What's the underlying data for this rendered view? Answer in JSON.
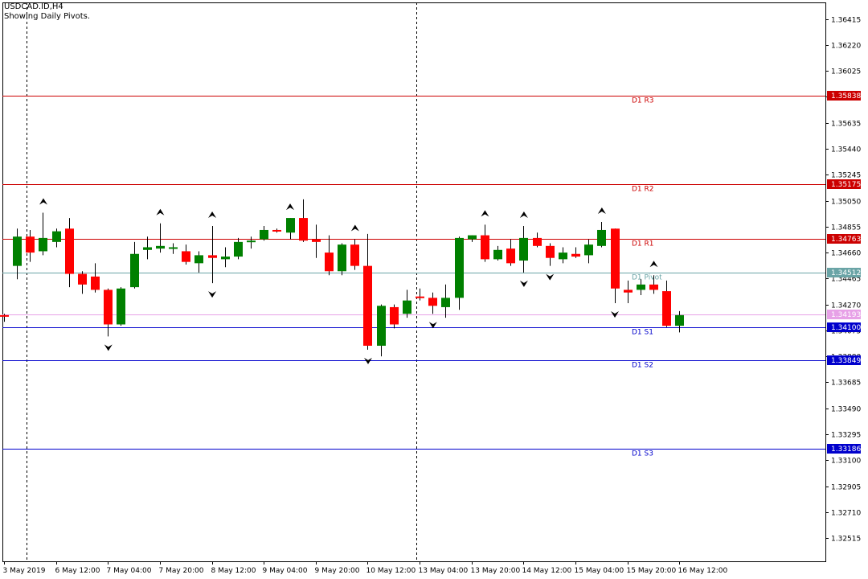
{
  "header": {
    "symbol": "USDCAD.ID,H4",
    "subtitle": "Showing Daily Pivots."
  },
  "colors": {
    "bull": "#008000",
    "bear": "#ff0000",
    "wick": "#000000",
    "resistance": "#cc0000",
    "pivot": "#6aa4a6",
    "support": "#0000cc",
    "bid": "#e7a1e7",
    "grid_dash": "#000000",
    "fractal": "#000000"
  },
  "chart_data": {
    "type": "candlestick",
    "ylim": [
      1.3234,
      1.3654
    ],
    "y_ticks": [
      "1.36415",
      "1.36220",
      "1.36025",
      "1.35835",
      "1.35635",
      "1.35440",
      "1.35245",
      "1.35050",
      "1.34855",
      "1.34660",
      "1.34465",
      "1.34270",
      "1.34075",
      "1.33880",
      "1.33685",
      "1.33490",
      "1.33295",
      "1.33100",
      "1.32905",
      "1.32710",
      "1.32515"
    ],
    "x_labels": [
      "3 May 2019",
      "6 May 12:00",
      "7 May 04:00",
      "7 May 20:00",
      "8 May 12:00",
      "9 May 04:00",
      "9 May 20:00",
      "10 May 12:00",
      "13 May 04:00",
      "13 May 20:00",
      "14 May 12:00",
      "15 May 04:00",
      "15 May 20:00",
      "16 May 12:00"
    ],
    "pivot_levels": [
      {
        "name": "D1 R3",
        "value": 1.35838,
        "label": "1.35838",
        "kind": "resistance"
      },
      {
        "name": "D1 R2",
        "value": 1.35175,
        "label": "1.35175",
        "kind": "resistance"
      },
      {
        "name": "D1 R1",
        "value": 1.34763,
        "label": "1.34763",
        "kind": "resistance"
      },
      {
        "name": "D1 Pivot",
        "value": 1.34512,
        "label": "1.34512",
        "kind": "pivot"
      },
      {
        "name": "D1 S1",
        "value": 1.341,
        "label": "1.34100",
        "kind": "support"
      },
      {
        "name": "D1 S2",
        "value": 1.33849,
        "label": "1.33849",
        "kind": "support"
      },
      {
        "name": "D1 S3",
        "value": 1.33186,
        "label": "1.33186",
        "kind": "support"
      }
    ],
    "current_price": {
      "value": 1.34193,
      "label": "1.34193"
    },
    "candles": [
      {
        "o": 1.3419,
        "h": 1.342,
        "l": 1.3414,
        "c": 1.3418
      },
      {
        "o": 1.3456,
        "h": 1.3484,
        "l": 1.3446,
        "c": 1.3478
      },
      {
        "o": 1.3478,
        "h": 1.3483,
        "l": 1.3459,
        "c": 1.3466
      },
      {
        "o": 1.3467,
        "h": 1.3496,
        "l": 1.3464,
        "c": 1.3477
      },
      {
        "o": 1.3474,
        "h": 1.3484,
        "l": 1.347,
        "c": 1.3482
      },
      {
        "o": 1.3484,
        "h": 1.3492,
        "l": 1.344,
        "c": 1.345
      },
      {
        "o": 1.345,
        "h": 1.3452,
        "l": 1.3435,
        "c": 1.3442
      },
      {
        "o": 1.3448,
        "h": 1.3458,
        "l": 1.3436,
        "c": 1.3438
      },
      {
        "o": 1.3438,
        "h": 1.3439,
        "l": 1.3403,
        "c": 1.3412
      },
      {
        "o": 1.3412,
        "h": 1.344,
        "l": 1.3411,
        "c": 1.3439
      },
      {
        "o": 1.344,
        "h": 1.3474,
        "l": 1.3439,
        "c": 1.3465
      },
      {
        "o": 1.3468,
        "h": 1.3478,
        "l": 1.3461,
        "c": 1.347
      },
      {
        "o": 1.3469,
        "h": 1.3488,
        "l": 1.3466,
        "c": 1.3471
      },
      {
        "o": 1.3469,
        "h": 1.3473,
        "l": 1.3465,
        "c": 1.347
      },
      {
        "o": 1.3467,
        "h": 1.3472,
        "l": 1.3457,
        "c": 1.3459
      },
      {
        "o": 1.3458,
        "h": 1.3467,
        "l": 1.3451,
        "c": 1.3464
      },
      {
        "o": 1.3464,
        "h": 1.3486,
        "l": 1.3443,
        "c": 1.3462
      },
      {
        "o": 1.3461,
        "h": 1.347,
        "l": 1.3455,
        "c": 1.3463
      },
      {
        "o": 1.3463,
        "h": 1.3477,
        "l": 1.3461,
        "c": 1.3474
      },
      {
        "o": 1.3474,
        "h": 1.3478,
        "l": 1.3469,
        "c": 1.3475
      },
      {
        "o": 1.3476,
        "h": 1.3486,
        "l": 1.3475,
        "c": 1.3483
      },
      {
        "o": 1.3483,
        "h": 1.3484,
        "l": 1.3481,
        "c": 1.3482
      },
      {
        "o": 1.3481,
        "h": 1.3492,
        "l": 1.3476,
        "c": 1.3492
      },
      {
        "o": 1.3492,
        "h": 1.3506,
        "l": 1.3474,
        "c": 1.3475
      },
      {
        "o": 1.3476,
        "h": 1.3487,
        "l": 1.3462,
        "c": 1.3474
      },
      {
        "o": 1.3466,
        "h": 1.3479,
        "l": 1.3449,
        "c": 1.3452
      },
      {
        "o": 1.3452,
        "h": 1.3473,
        "l": 1.3449,
        "c": 1.3472
      },
      {
        "o": 1.3472,
        "h": 1.3476,
        "l": 1.3453,
        "c": 1.3456
      },
      {
        "o": 1.3456,
        "h": 1.348,
        "l": 1.3393,
        "c": 1.3396
      },
      {
        "o": 1.3396,
        "h": 1.3427,
        "l": 1.3388,
        "c": 1.3426
      },
      {
        "o": 1.3425,
        "h": 1.3427,
        "l": 1.3409,
        "c": 1.3412
      },
      {
        "o": 1.342,
        "h": 1.3438,
        "l": 1.3417,
        "c": 1.343
      },
      {
        "o": 1.3433,
        "h": 1.3439,
        "l": 1.343,
        "c": 1.3432
      },
      {
        "o": 1.3432,
        "h": 1.3436,
        "l": 1.342,
        "c": 1.3426
      },
      {
        "o": 1.3425,
        "h": 1.3442,
        "l": 1.3417,
        "c": 1.3432
      },
      {
        "o": 1.3432,
        "h": 1.3478,
        "l": 1.3423,
        "c": 1.3477
      },
      {
        "o": 1.3476,
        "h": 1.3479,
        "l": 1.3474,
        "c": 1.3479
      },
      {
        "o": 1.3479,
        "h": 1.3487,
        "l": 1.3459,
        "c": 1.3461
      },
      {
        "o": 1.3461,
        "h": 1.3471,
        "l": 1.346,
        "c": 1.3468
      },
      {
        "o": 1.3469,
        "h": 1.3476,
        "l": 1.3456,
        "c": 1.3458
      },
      {
        "o": 1.346,
        "h": 1.3486,
        "l": 1.3451,
        "c": 1.3477
      },
      {
        "o": 1.3477,
        "h": 1.3481,
        "l": 1.347,
        "c": 1.3471
      },
      {
        "o": 1.3471,
        "h": 1.3473,
        "l": 1.3456,
        "c": 1.3462
      },
      {
        "o": 1.3461,
        "h": 1.347,
        "l": 1.3458,
        "c": 1.3466
      },
      {
        "o": 1.3465,
        "h": 1.347,
        "l": 1.3462,
        "c": 1.3463
      },
      {
        "o": 1.3464,
        "h": 1.3476,
        "l": 1.3458,
        "c": 1.3472
      },
      {
        "o": 1.3471,
        "h": 1.3489,
        "l": 1.347,
        "c": 1.3483
      },
      {
        "o": 1.3484,
        "h": 1.3484,
        "l": 1.3428,
        "c": 1.3439
      },
      {
        "o": 1.3438,
        "h": 1.3445,
        "l": 1.3428,
        "c": 1.3436
      },
      {
        "o": 1.3438,
        "h": 1.3446,
        "l": 1.3434,
        "c": 1.3442
      },
      {
        "o": 1.3442,
        "h": 1.3449,
        "l": 1.3435,
        "c": 1.3438
      },
      {
        "o": 1.3437,
        "h": 1.3445,
        "l": 1.341,
        "c": 1.3411
      },
      {
        "o": 1.3411,
        "h": 1.3422,
        "l": 1.3406,
        "c": 1.3419
      }
    ],
    "fractals_up": [
      3,
      12,
      16,
      22,
      27,
      37,
      40,
      46,
      50
    ],
    "fractals_down": [
      8,
      16,
      28,
      33,
      40,
      42,
      47
    ],
    "period_separators": [
      1,
      31
    ],
    "labels_at_candles": [
      0,
      4,
      8,
      12,
      16,
      20,
      24,
      28,
      32,
      36,
      40,
      44,
      48,
      52
    ]
  }
}
